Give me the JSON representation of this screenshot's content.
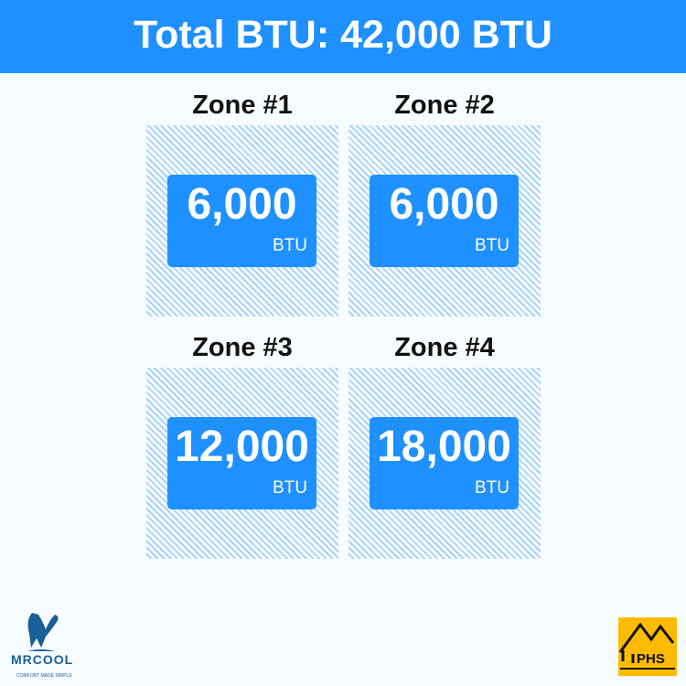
{
  "header": {
    "title": "Total BTU: 42,000 BTU"
  },
  "zones": [
    {
      "title": "Zone #1",
      "value": "6,000",
      "unit": "BTU"
    },
    {
      "title": "Zone #2",
      "value": "6,000",
      "unit": "BTU"
    },
    {
      "title": "Zone #3",
      "value": "12,000",
      "unit": "BTU"
    },
    {
      "title": "Zone #4",
      "value": "18,000",
      "unit": "BTU"
    }
  ],
  "logos": {
    "left": "MRCOOL",
    "left_tagline": "COMFORT MADE SIMPLE",
    "right": "PHS"
  },
  "colors": {
    "accent": "#1e90ff",
    "hatch": "#a9d2fb",
    "phs": "#fdbb00",
    "mrcool": "#1a5f96"
  }
}
